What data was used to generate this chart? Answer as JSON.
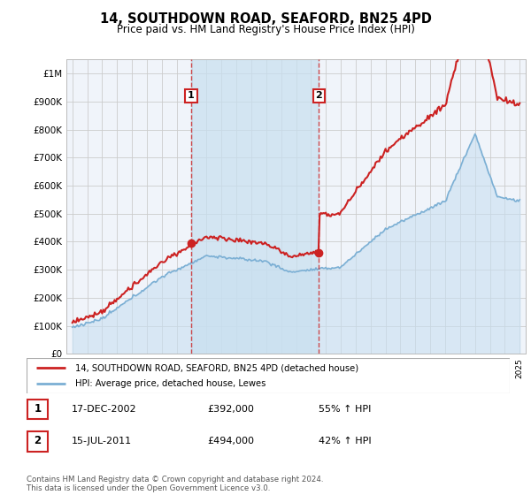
{
  "title": "14, SOUTHDOWN ROAD, SEAFORD, BN25 4PD",
  "subtitle": "Price paid vs. HM Land Registry's House Price Index (HPI)",
  "ytick_values": [
    0,
    100000,
    200000,
    300000,
    400000,
    500000,
    600000,
    700000,
    800000,
    900000,
    1000000
  ],
  "hpi_color": "#7bafd4",
  "hpi_fill_color": "#c8dff0",
  "price_color": "#cc2222",
  "sale1_year": 2002.96,
  "sale1_price": 392000,
  "sale2_year": 2011.54,
  "sale2_price": 494000,
  "legend_entry1": "14, SOUTHDOWN ROAD, SEAFORD, BN25 4PD (detached house)",
  "legend_entry2": "HPI: Average price, detached house, Lewes",
  "table_row1": [
    "1",
    "17-DEC-2002",
    "£392,000",
    "55% ↑ HPI"
  ],
  "table_row2": [
    "2",
    "15-JUL-2011",
    "£494,000",
    "42% ↑ HPI"
  ],
  "footer": "Contains HM Land Registry data © Crown copyright and database right 2024.\nThis data is licensed under the Open Government Licence v3.0.",
  "bg_color": "#f0f4fa",
  "fig_color": "#ffffff",
  "grid_color": "#cccccc",
  "ylim": [
    0,
    1050000
  ]
}
